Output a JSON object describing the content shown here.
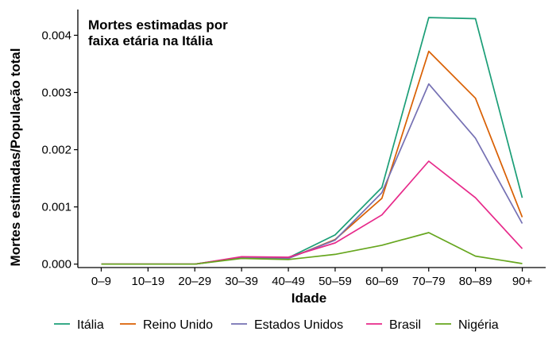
{
  "chart_data": {
    "type": "line",
    "title": "Mortes estimadas por faixa etária na Itália",
    "title_lines": [
      "Mortes estimadas por",
      "faixa etária na Itália"
    ],
    "xlabel": "Idade",
    "ylabel": "Mortes estimadas/População total",
    "categories": [
      "0–9",
      "10–19",
      "20–29",
      "30–39",
      "40–49",
      "50–59",
      "60–69",
      "70–79",
      "80–89",
      "90+"
    ],
    "ylim": [
      -6e-05,
      0.00445
    ],
    "yticks": [
      0.0,
      0.001,
      0.002,
      0.003,
      0.004
    ],
    "ytick_labels": [
      "0.000",
      "0.001",
      "0.002",
      "0.003",
      "0.004"
    ],
    "grid": false,
    "legend_position": "bottom",
    "series": [
      {
        "name": "Itália",
        "color": "#1b9e77",
        "values": [
          0.0,
          0.0,
          0.0,
          0.00012,
          0.00011,
          0.00051,
          0.00134,
          0.00431,
          0.00429,
          0.00116
        ]
      },
      {
        "name": "Reino Unido",
        "color": "#d95f02",
        "values": [
          0.0,
          0.0,
          0.0,
          0.00011,
          0.0001,
          0.00043,
          0.00115,
          0.00372,
          0.0029,
          0.00082
        ]
      },
      {
        "name": "Estados Unidos",
        "color": "#7570b3",
        "values": [
          0.0,
          0.0,
          0.0,
          0.00011,
          0.0001,
          0.00042,
          0.00125,
          0.00315,
          0.0022,
          0.00071
        ]
      },
      {
        "name": "Brasil",
        "color": "#e7298a",
        "values": [
          0.0,
          0.0,
          0.0,
          0.00013,
          0.00012,
          0.00037,
          0.00086,
          0.0018,
          0.00116,
          0.00027
        ]
      },
      {
        "name": "Nigéria",
        "color": "#66a61e",
        "values": [
          0.0,
          0.0,
          0.0,
          0.0001,
          8e-05,
          0.00017,
          0.00033,
          0.00055,
          0.00014,
          1e-05
        ]
      }
    ]
  }
}
